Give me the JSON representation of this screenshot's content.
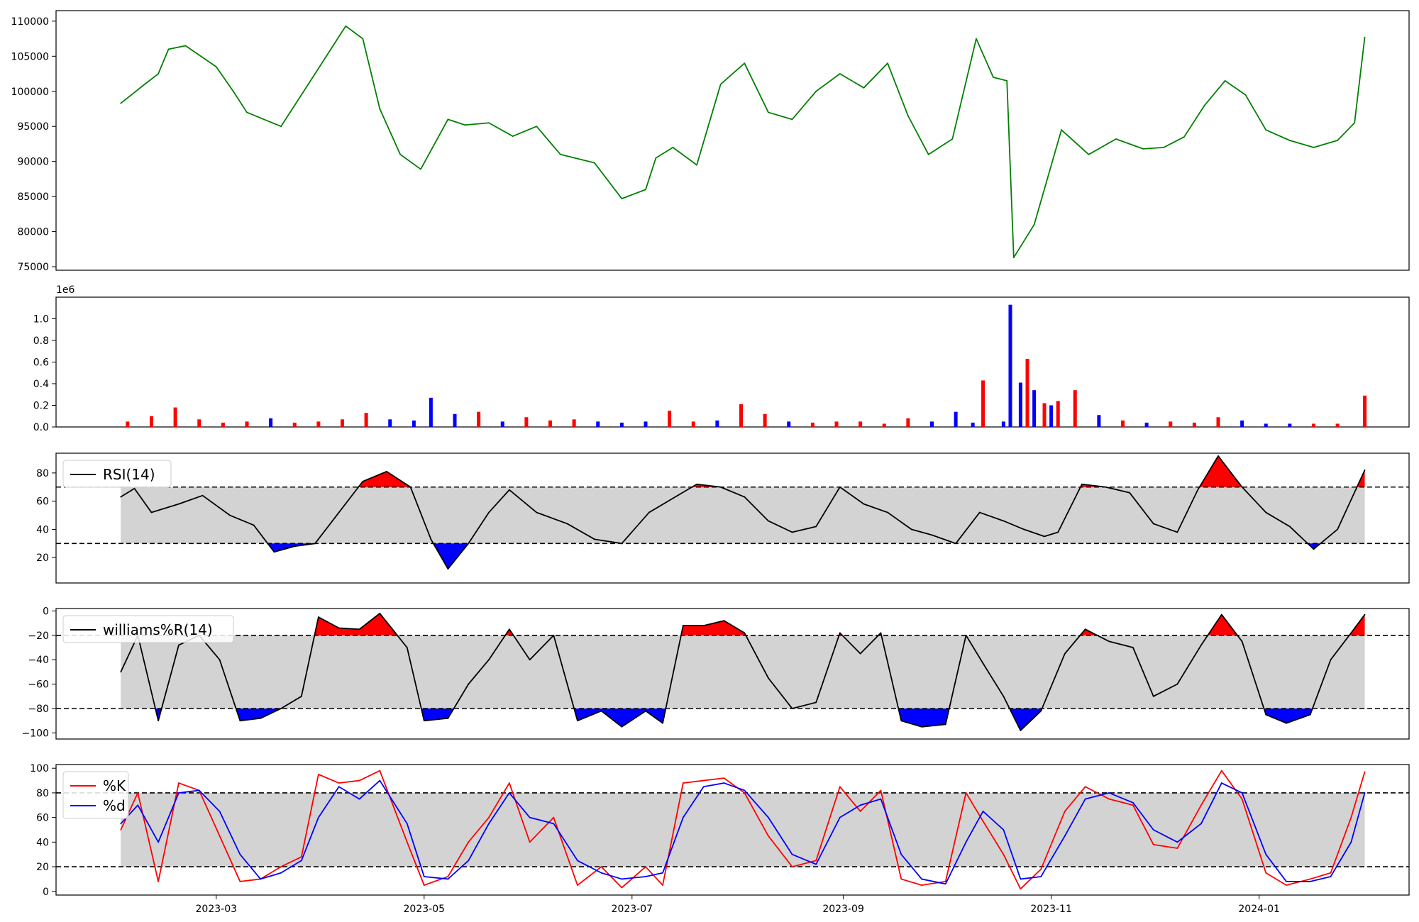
{
  "chart_data": [
    {
      "type": "line",
      "panel": "price",
      "title": "",
      "ylim": [
        74500,
        111500
      ],
      "y_ticks": [
        "75000",
        "80000",
        "85000",
        "90000",
        "95000",
        "100000",
        "105000",
        "110000"
      ],
      "x_range": [
        "2023-01-13",
        "2024-02-14"
      ],
      "x": [
        "2023-02-01",
        "2023-02-08",
        "2023-02-12",
        "2023-02-15",
        "2023-02-20",
        "2023-03-01",
        "2023-03-06",
        "2023-03-10",
        "2023-03-20",
        "2023-03-28",
        "2023-04-08",
        "2023-04-13",
        "2023-04-18",
        "2023-04-24",
        "2023-04-30",
        "2023-05-08",
        "2023-05-13",
        "2023-05-20",
        "2023-05-27",
        "2023-06-03",
        "2023-06-10",
        "2023-06-20",
        "2023-06-28",
        "2023-07-05",
        "2023-07-08",
        "2023-07-13",
        "2023-07-20",
        "2023-07-27",
        "2023-08-03",
        "2023-08-10",
        "2023-08-17",
        "2023-08-24",
        "2023-08-31",
        "2023-09-07",
        "2023-09-14",
        "2023-09-20",
        "2023-09-26",
        "2023-10-03",
        "2023-10-10",
        "2023-10-15",
        "2023-10-19",
        "2023-10-21",
        "2023-10-27",
        "2023-11-04",
        "2023-11-12",
        "2023-11-20",
        "2023-11-28",
        "2023-12-04",
        "2023-12-10",
        "2023-12-16",
        "2023-12-22",
        "2023-12-28",
        "2024-01-03",
        "2024-01-10",
        "2024-01-17",
        "2024-01-24",
        "2024-01-29",
        "2024-02-01"
      ],
      "series": [
        {
          "color": "#008000",
          "values": [
            98300,
            101000,
            102500,
            106000,
            106500,
            103500,
            100000,
            97000,
            95000,
            101000,
            109300,
            107500,
            97500,
            91000,
            88900,
            96000,
            95200,
            95500,
            93600,
            95000,
            91000,
            89800,
            84700,
            86000,
            90500,
            92000,
            89500,
            101000,
            104000,
            97000,
            96000,
            100000,
            102500,
            100500,
            104000,
            96500,
            91000,
            93200,
            107500,
            102000,
            101500,
            76300,
            81000,
            94500,
            91000,
            93200,
            91800,
            92000,
            93500,
            98000,
            101500,
            99500,
            94500,
            93000,
            92000,
            93000,
            95500,
            107700
          ]
        }
      ]
    },
    {
      "type": "bar",
      "panel": "volume",
      "title": "",
      "scale_label": "1e6",
      "ylim": [
        0,
        1.2
      ],
      "y_ticks": [
        "0.0",
        "0.2",
        "0.4",
        "0.6",
        "0.8",
        "1.0"
      ],
      "colors": {
        "up": "#ff0000",
        "down": "#0000ff"
      },
      "x": [
        "2023-02-03",
        "2023-02-10",
        "2023-02-17",
        "2023-02-24",
        "2023-03-03",
        "2023-03-10",
        "2023-03-17",
        "2023-03-24",
        "2023-03-31",
        "2023-04-07",
        "2023-04-14",
        "2023-04-21",
        "2023-04-28",
        "2023-05-03",
        "2023-05-10",
        "2023-05-17",
        "2023-05-24",
        "2023-05-31",
        "2023-06-07",
        "2023-06-14",
        "2023-06-21",
        "2023-06-28",
        "2023-07-05",
        "2023-07-12",
        "2023-07-19",
        "2023-07-26",
        "2023-08-02",
        "2023-08-09",
        "2023-08-16",
        "2023-08-23",
        "2023-08-30",
        "2023-09-06",
        "2023-09-13",
        "2023-09-20",
        "2023-09-27",
        "2023-10-04",
        "2023-10-09",
        "2023-10-12",
        "2023-10-18",
        "2023-10-20",
        "2023-10-23",
        "2023-10-25",
        "2023-10-27",
        "2023-10-30",
        "2023-11-01",
        "2023-11-03",
        "2023-11-08",
        "2023-11-15",
        "2023-11-22",
        "2023-11-29",
        "2023-12-06",
        "2023-12-13",
        "2023-12-20",
        "2023-12-27",
        "2024-01-03",
        "2024-01-10",
        "2024-01-17",
        "2024-01-24",
        "2024-02-01"
      ],
      "values": [
        0.05,
        0.1,
        0.18,
        0.07,
        0.04,
        0.05,
        0.08,
        0.04,
        0.05,
        0.07,
        0.13,
        0.07,
        0.06,
        0.27,
        0.12,
        0.14,
        0.05,
        0.09,
        0.06,
        0.07,
        0.05,
        0.04,
        0.05,
        0.15,
        0.05,
        0.06,
        0.21,
        0.12,
        0.05,
        0.04,
        0.05,
        0.05,
        0.03,
        0.08,
        0.05,
        0.14,
        0.04,
        0.43,
        0.05,
        1.13,
        0.41,
        0.63,
        0.34,
        0.22,
        0.2,
        0.24,
        0.34,
        0.11,
        0.06,
        0.04,
        0.05,
        0.04,
        0.09,
        0.06,
        0.03,
        0.03,
        0.03,
        0.03,
        0.29
      ],
      "up": [
        1,
        1,
        1,
        1,
        1,
        1,
        0,
        1,
        1,
        1,
        1,
        0,
        0,
        0,
        0,
        1,
        0,
        1,
        1,
        1,
        0,
        0,
        0,
        1,
        1,
        0,
        1,
        1,
        0,
        1,
        1,
        1,
        1,
        1,
        0,
        0,
        0,
        1,
        0,
        0,
        0,
        1,
        0,
        1,
        0,
        1,
        1,
        0,
        1,
        0,
        1,
        1,
        1,
        0,
        0,
        0,
        1,
        1,
        1
      ]
    },
    {
      "type": "line",
      "panel": "rsi",
      "legend": [
        "RSI(14)"
      ],
      "ylim": [
        2,
        94
      ],
      "y_ticks": [
        "20",
        "40",
        "60",
        "80"
      ],
      "thresholds": [
        70,
        30
      ],
      "colors": {
        "line": "#000000",
        "band": "#d3d3d3",
        "over": "#ff0000",
        "under": "#0000ff"
      },
      "x": [
        "2023-02-01",
        "2023-02-05",
        "2023-02-10",
        "2023-02-18",
        "2023-02-25",
        "2023-03-05",
        "2023-03-12",
        "2023-03-18",
        "2023-03-24",
        "2023-03-30",
        "2023-04-06",
        "2023-04-13",
        "2023-04-20",
        "2023-04-27",
        "2023-05-03",
        "2023-05-08",
        "2023-05-14",
        "2023-05-20",
        "2023-05-26",
        "2023-06-03",
        "2023-06-12",
        "2023-06-20",
        "2023-06-28",
        "2023-07-06",
        "2023-07-13",
        "2023-07-20",
        "2023-07-27",
        "2023-08-03",
        "2023-08-10",
        "2023-08-17",
        "2023-08-24",
        "2023-08-31",
        "2023-09-07",
        "2023-09-14",
        "2023-09-21",
        "2023-09-27",
        "2023-10-04",
        "2023-10-11",
        "2023-10-18",
        "2023-10-24",
        "2023-10-30",
        "2023-11-03",
        "2023-11-10",
        "2023-11-17",
        "2023-11-24",
        "2023-12-01",
        "2023-12-08",
        "2023-12-14",
        "2023-12-20",
        "2023-12-27",
        "2024-01-03",
        "2024-01-10",
        "2024-01-17",
        "2024-01-24",
        "2024-02-01"
      ],
      "values": [
        63,
        69,
        52,
        58,
        64,
        50,
        43,
        24,
        28,
        30,
        52,
        74,
        81,
        70,
        33,
        12,
        30,
        52,
        68,
        52,
        44,
        33,
        30,
        52,
        62,
        72,
        70,
        63,
        46,
        38,
        42,
        70,
        58,
        52,
        40,
        36,
        30,
        52,
        46,
        40,
        35,
        38,
        72,
        70,
        66,
        44,
        38,
        68,
        92,
        70,
        52,
        42,
        26,
        40,
        82
      ]
    },
    {
      "type": "line",
      "panel": "williams",
      "legend": [
        "williams%R(14)"
      ],
      "ylim": [
        -105,
        2
      ],
      "y_ticks": [
        "0",
        "−20",
        "−40",
        "−60",
        "−80",
        "−100"
      ],
      "thresholds": [
        -20,
        -80
      ],
      "colors": {
        "line": "#000000",
        "band": "#d3d3d3",
        "over": "#ff0000",
        "under": "#0000ff"
      },
      "x": [
        "2023-02-01",
        "2023-02-06",
        "2023-02-12",
        "2023-02-18",
        "2023-02-24",
        "2023-03-02",
        "2023-03-08",
        "2023-03-14",
        "2023-03-20",
        "2023-03-26",
        "2023-03-31",
        "2023-04-06",
        "2023-04-12",
        "2023-04-18",
        "2023-04-26",
        "2023-05-01",
        "2023-05-08",
        "2023-05-14",
        "2023-05-20",
        "2023-05-26",
        "2023-06-01",
        "2023-06-08",
        "2023-06-15",
        "2023-06-22",
        "2023-06-28",
        "2023-07-05",
        "2023-07-10",
        "2023-07-16",
        "2023-07-22",
        "2023-07-28",
        "2023-08-03",
        "2023-08-10",
        "2023-08-17",
        "2023-08-24",
        "2023-08-31",
        "2023-09-06",
        "2023-09-12",
        "2023-09-18",
        "2023-09-24",
        "2023-10-01",
        "2023-10-07",
        "2023-10-12",
        "2023-10-18",
        "2023-10-23",
        "2023-10-29",
        "2023-11-05",
        "2023-11-11",
        "2023-11-18",
        "2023-11-25",
        "2023-12-01",
        "2023-12-08",
        "2023-12-15",
        "2023-12-21",
        "2023-12-27",
        "2024-01-03",
        "2024-01-09",
        "2024-01-16",
        "2024-01-22",
        "2024-01-28",
        "2024-02-01"
      ],
      "values": [
        -50,
        -20,
        -90,
        -28,
        -20,
        -40,
        -90,
        -88,
        -80,
        -70,
        -5,
        -14,
        -15,
        -2,
        -30,
        -90,
        -88,
        -60,
        -40,
        -15,
        -40,
        -20,
        -90,
        -82,
        -95,
        -82,
        -92,
        -12,
        -12,
        -8,
        -18,
        -55,
        -80,
        -75,
        -18,
        -35,
        -18,
        -90,
        -95,
        -93,
        -20,
        -43,
        -70,
        -98,
        -82,
        -35,
        -15,
        -25,
        -30,
        -70,
        -60,
        -28,
        -3,
        -25,
        -85,
        -92,
        -85,
        -40,
        -18,
        -3
      ]
    },
    {
      "type": "line",
      "panel": "stochastic",
      "legend": [
        "%K",
        "%d"
      ],
      "ylim": [
        -3,
        103
      ],
      "y_ticks": [
        "0",
        "20",
        "40",
        "60",
        "80",
        "100"
      ],
      "thresholds": [
        80,
        20
      ],
      "colors": {
        "band": "#d3d3d3"
      },
      "x": [
        "2023-02-01",
        "2023-02-06",
        "2023-02-12",
        "2023-02-18",
        "2023-02-24",
        "2023-03-02",
        "2023-03-08",
        "2023-03-14",
        "2023-03-20",
        "2023-03-26",
        "2023-03-31",
        "2023-04-06",
        "2023-04-12",
        "2023-04-18",
        "2023-04-26",
        "2023-05-01",
        "2023-05-08",
        "2023-05-14",
        "2023-05-20",
        "2023-05-26",
        "2023-06-01",
        "2023-06-08",
        "2023-06-15",
        "2023-06-22",
        "2023-06-28",
        "2023-07-05",
        "2023-07-10",
        "2023-07-16",
        "2023-07-22",
        "2023-07-28",
        "2023-08-03",
        "2023-08-10",
        "2023-08-17",
        "2023-08-24",
        "2023-08-31",
        "2023-09-06",
        "2023-09-12",
        "2023-09-18",
        "2023-09-24",
        "2023-10-01",
        "2023-10-07",
        "2023-10-12",
        "2023-10-18",
        "2023-10-23",
        "2023-10-29",
        "2023-11-05",
        "2023-11-11",
        "2023-11-18",
        "2023-11-25",
        "2023-12-01",
        "2023-12-08",
        "2023-12-15",
        "2023-12-21",
        "2023-12-27",
        "2024-01-03",
        "2024-01-09",
        "2024-01-16",
        "2024-01-22",
        "2024-01-28",
        "2024-02-01"
      ],
      "series": [
        {
          "name": "%K",
          "color": "#ff0000",
          "values": [
            50,
            80,
            8,
            88,
            82,
            45,
            8,
            10,
            20,
            28,
            95,
            88,
            90,
            98,
            40,
            5,
            12,
            40,
            60,
            88,
            40,
            60,
            5,
            20,
            3,
            20,
            5,
            88,
            90,
            92,
            80,
            45,
            20,
            25,
            85,
            65,
            82,
            10,
            5,
            8,
            80,
            57,
            30,
            2,
            18,
            65,
            85,
            75,
            70,
            38,
            35,
            70,
            98,
            75,
            15,
            5,
            10,
            15,
            60,
            97
          ]
        },
        {
          "name": "%d",
          "color": "#0000ff",
          "values": [
            55,
            70,
            40,
            80,
            82,
            65,
            30,
            10,
            15,
            25,
            60,
            85,
            75,
            90,
            55,
            12,
            10,
            25,
            55,
            80,
            60,
            55,
            25,
            15,
            10,
            12,
            15,
            60,
            85,
            88,
            82,
            60,
            30,
            22,
            60,
            70,
            75,
            30,
            10,
            6,
            40,
            65,
            50,
            10,
            12,
            45,
            75,
            80,
            72,
            50,
            40,
            55,
            88,
            80,
            30,
            8,
            8,
            12,
            40,
            80
          ]
        }
      ]
    }
  ],
  "x_axis": {
    "ticks": [
      "2023-03",
      "2023-05",
      "2023-07",
      "2023-09",
      "2023-11",
      "2024-01"
    ]
  }
}
